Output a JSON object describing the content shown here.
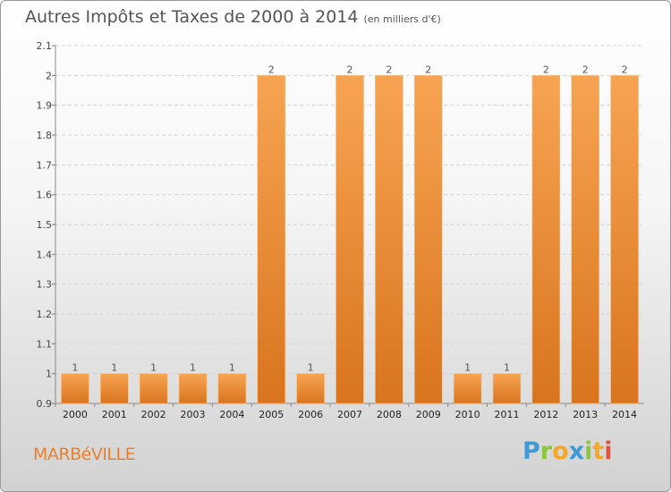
{
  "chart_data": {
    "type": "bar",
    "title": "Autres Impôts et Taxes de 2000 à 2014",
    "subtitle": "(en milliers d'€)",
    "xlabel": "",
    "ylabel": "",
    "categories": [
      "2000",
      "2001",
      "2002",
      "2003",
      "2004",
      "2005",
      "2006",
      "2007",
      "2008",
      "2009",
      "2010",
      "2011",
      "2012",
      "2013",
      "2014"
    ],
    "values": [
      1,
      1,
      1,
      1,
      1,
      2,
      1,
      2,
      2,
      2,
      1,
      1,
      2,
      2,
      2
    ],
    "data_labels": [
      "1",
      "1",
      "1",
      "1",
      "1",
      "2",
      "1",
      "2",
      "2",
      "2",
      "1",
      "1",
      "2",
      "2",
      "2"
    ],
    "ylim": [
      0.9,
      2.1
    ],
    "yticks": [
      "0.9",
      "1",
      "1.1",
      "1.2",
      "1.3",
      "1.4",
      "1.5",
      "1.6",
      "1.7",
      "1.8",
      "1.9",
      "2",
      "2.1"
    ],
    "grid": true,
    "colors": {
      "bar_top": "#f7a452",
      "bar_bottom": "#d9741e",
      "grid": "#d5d5d5"
    }
  },
  "footer": {
    "city": "MARBéVILLE",
    "brand_letters": [
      {
        "char": "P",
        "color": "#3d9bd6"
      },
      {
        "char": "r",
        "color": "#8cc63e"
      },
      {
        "char": "o",
        "color": "#f5a623"
      },
      {
        "char": "x",
        "color": "#3d9bd6"
      },
      {
        "char": "i",
        "color": "#8cc63e"
      },
      {
        "char": "t",
        "color": "#f5a623"
      },
      {
        "char": "i",
        "color": "#e2523a"
      }
    ]
  }
}
